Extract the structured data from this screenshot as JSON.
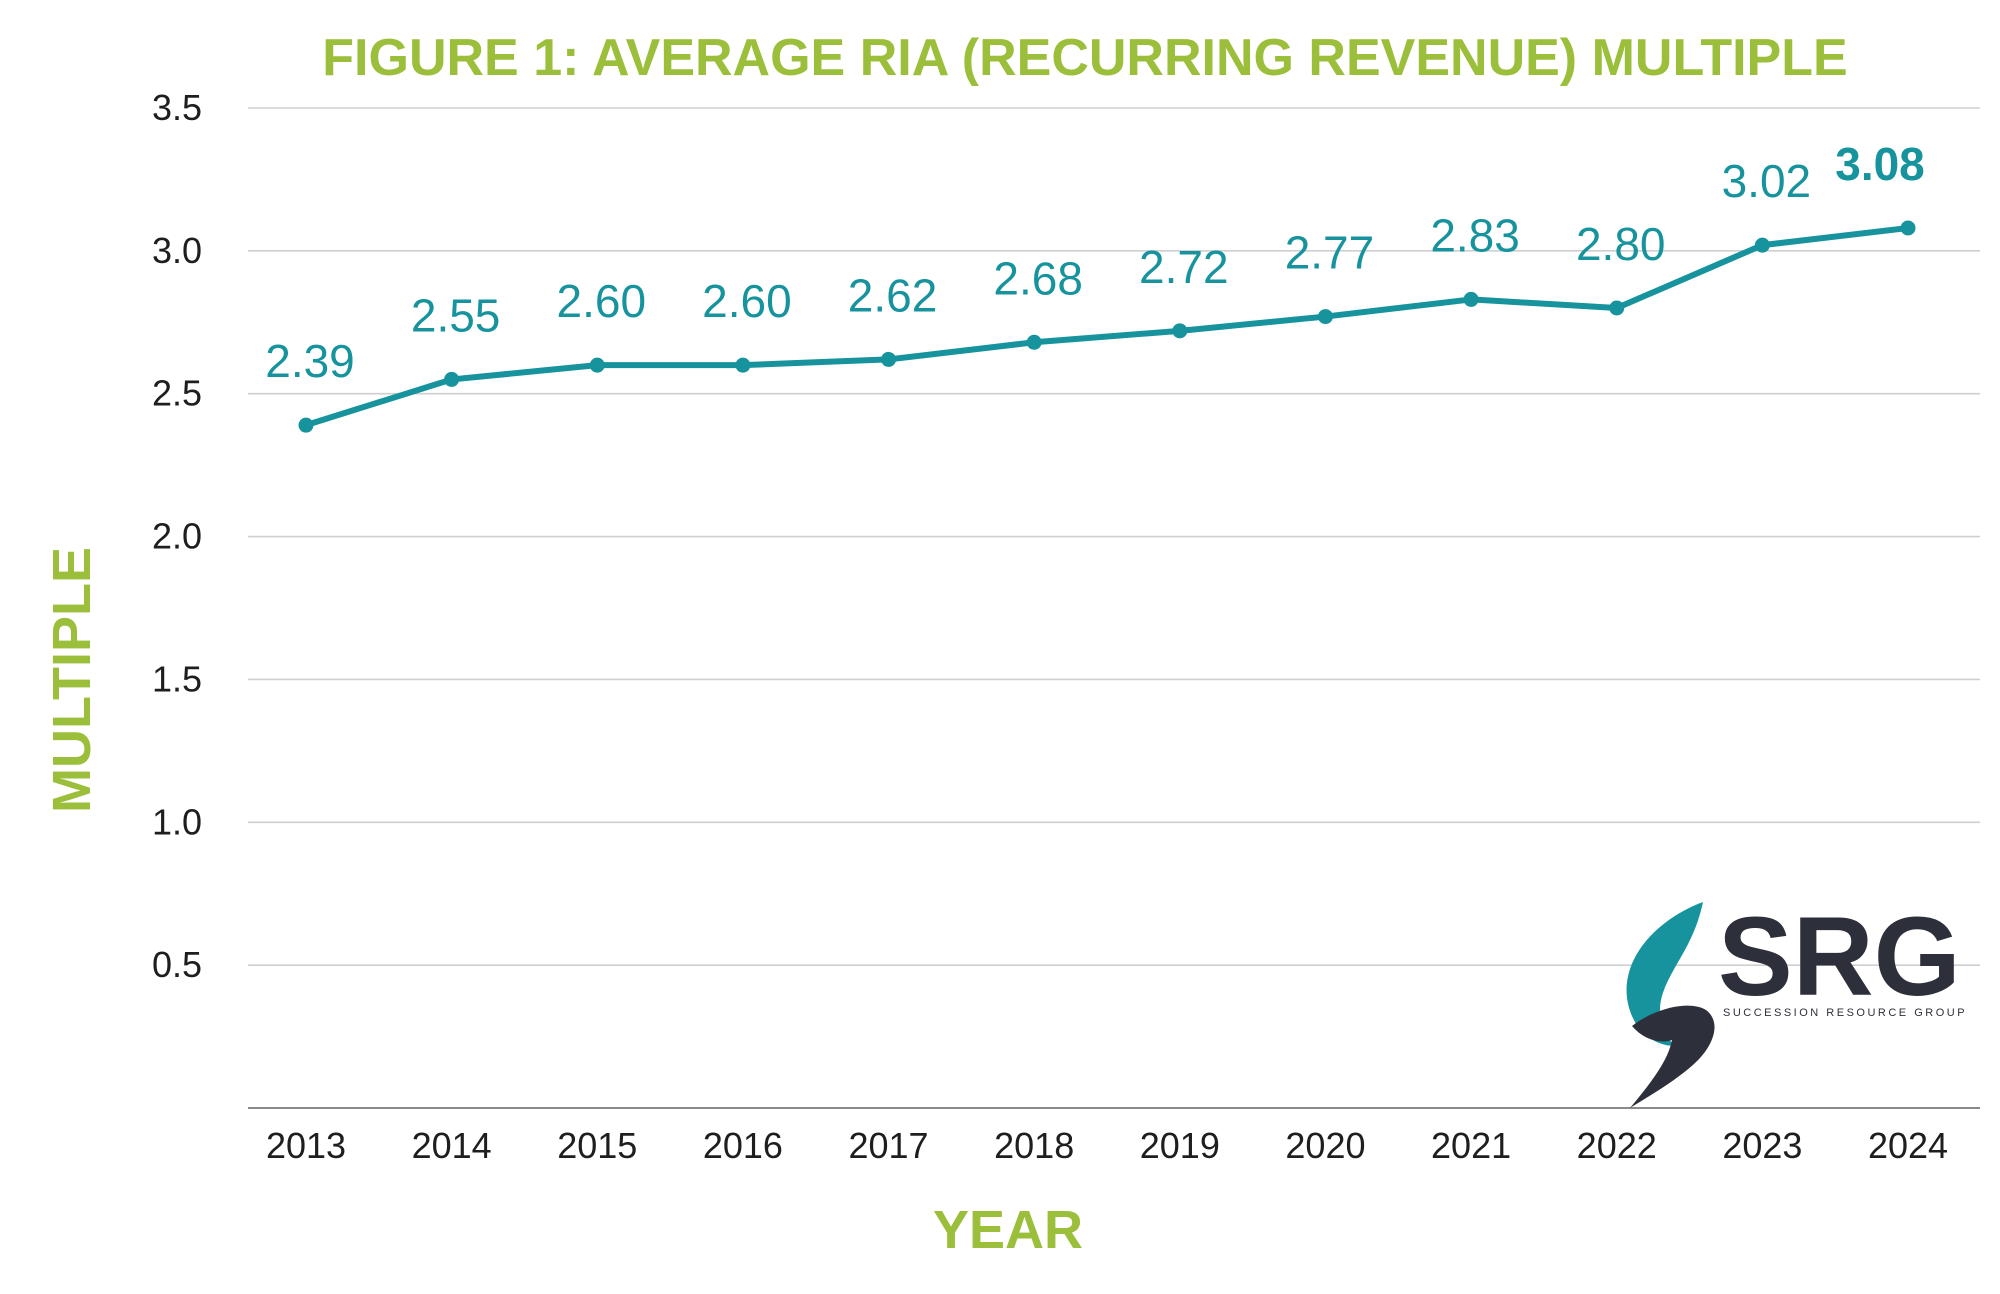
{
  "chart_data": {
    "type": "line",
    "title": "FIGURE 1: AVERAGE RIA (RECURRING REVENUE) MULTIPLE",
    "xlabel": "YEAR",
    "ylabel": "MULTIPLE",
    "categories": [
      "2013",
      "2014",
      "2015",
      "2016",
      "2017",
      "2018",
      "2019",
      "2020",
      "2021",
      "2022",
      "2023",
      "2024"
    ],
    "values": [
      2.39,
      2.55,
      2.6,
      2.6,
      2.62,
      2.68,
      2.72,
      2.77,
      2.83,
      2.8,
      3.02,
      3.08
    ],
    "data_labels": [
      "2.39",
      "2.55",
      "2.60",
      "2.60",
      "2.62",
      "2.68",
      "2.72",
      "2.77",
      "2.83",
      "2.80",
      "3.02",
      "3.08"
    ],
    "emphasized_label_index": 11,
    "ylim": [
      0,
      3.5
    ],
    "yticks": [
      "0.5",
      "1.0",
      "1.5",
      "2.0",
      "2.5",
      "3.0",
      "3.5"
    ],
    "grid": true,
    "legend": "none",
    "colors": {
      "line": "#17939e",
      "title": "#9bbf3b",
      "grid": "#cfcfcf"
    }
  },
  "logo": {
    "name": "SRG",
    "tagline": "SUCCESSION RESOURCE GROUP",
    "icon": "srg-swirl-logo-icon",
    "colors": {
      "teal": "#17939e",
      "dark": "#2d2f3a"
    }
  }
}
